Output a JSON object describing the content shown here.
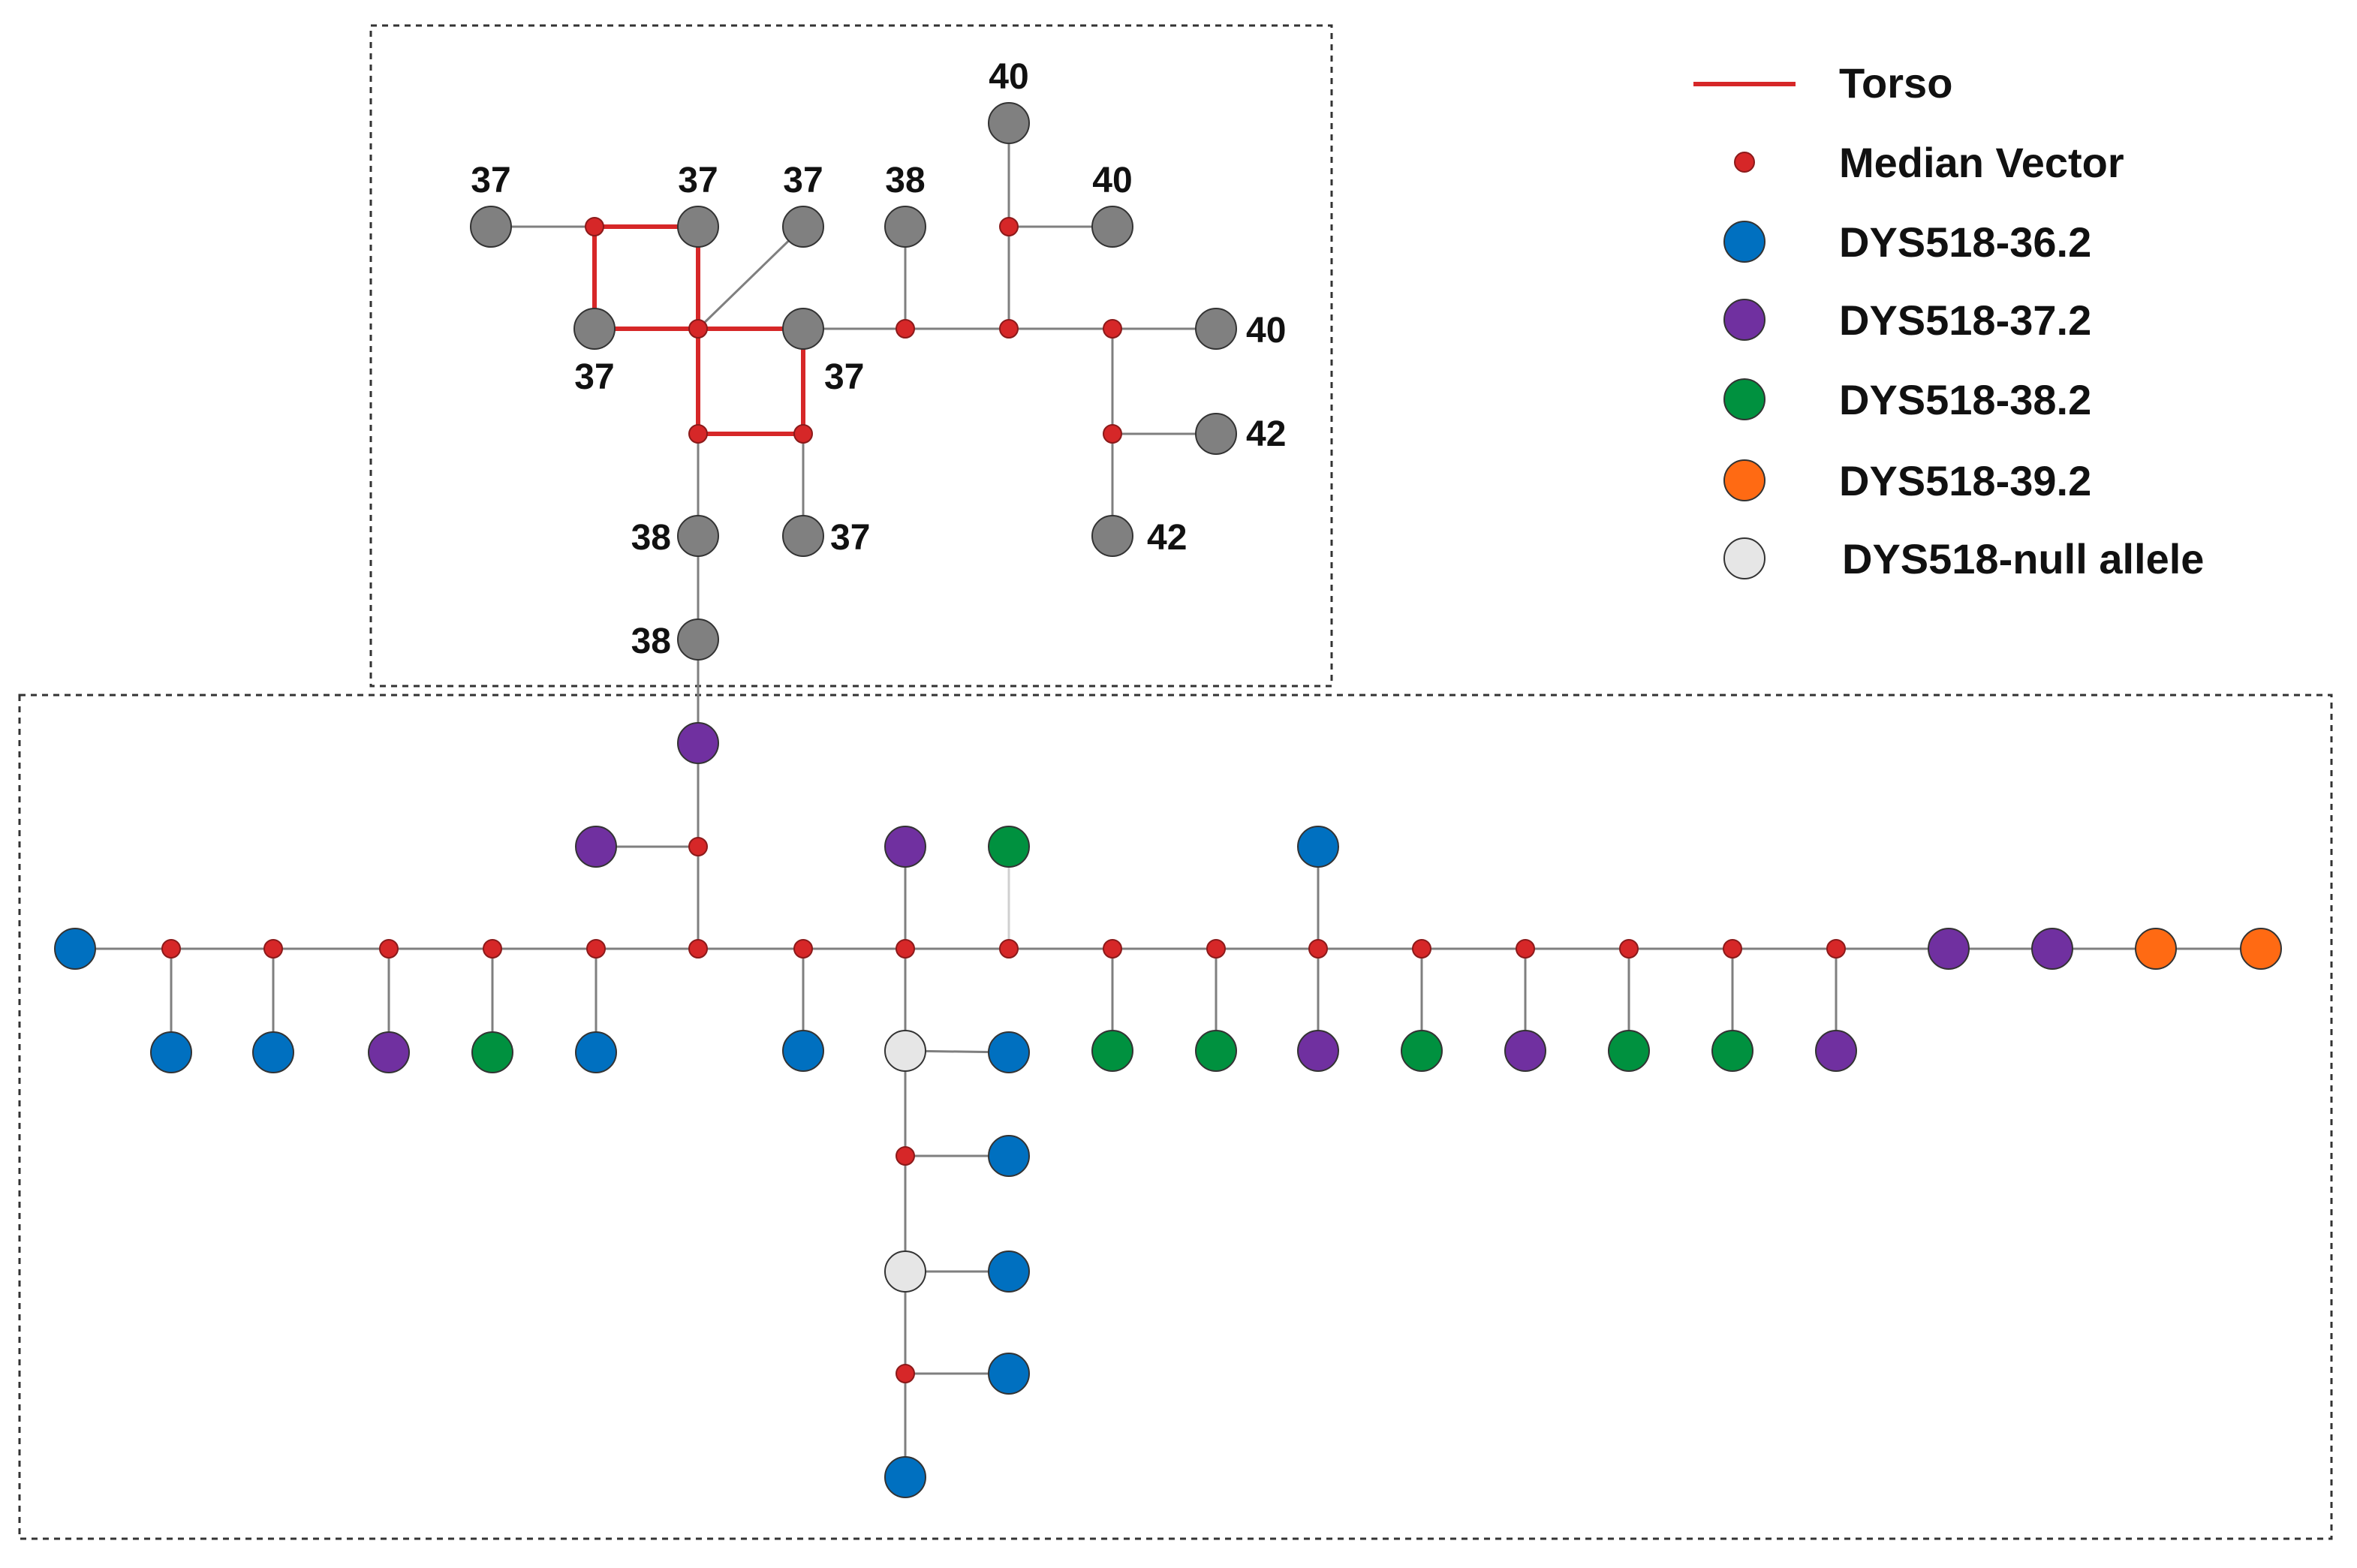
{
  "colors": {
    "torso": "#d62728",
    "median_vector": "#d62728",
    "grey_node": "#808080",
    "blue": "#0070c0",
    "purple": "#7030a0",
    "green": "#00913f",
    "orange": "#ff6a13",
    "null": "#e6e6e6",
    "edge": "#7f7f7f"
  },
  "legend": [
    {
      "key": "torso",
      "label": "Torso",
      "symbol": "line"
    },
    {
      "key": "median_vector",
      "label": "Median Vector",
      "symbol": "small-dot"
    },
    {
      "key": "blue",
      "label": "DYS518-36.2",
      "symbol": "circle"
    },
    {
      "key": "purple",
      "label": "DYS518-37.2",
      "symbol": "circle"
    },
    {
      "key": "green",
      "label": "DYS518-38.2",
      "symbol": "circle"
    },
    {
      "key": "orange",
      "label": "DYS518-39.2",
      "symbol": "circle"
    },
    {
      "key": "null",
      "label": "DYS518-null allele",
      "symbol": "circle"
    }
  ],
  "upper_labels": [
    "37",
    "37",
    "37",
    "38",
    "40",
    "40",
    "37",
    "37",
    "40",
    "42",
    "38",
    "37",
    "42",
    "38"
  ]
}
